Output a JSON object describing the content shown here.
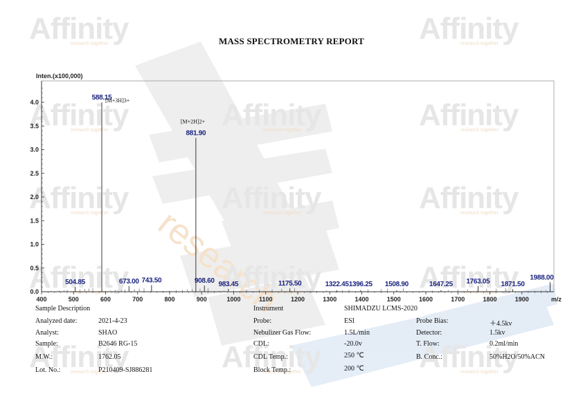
{
  "watermark": {
    "text": "Affinity",
    "subtext": "research together",
    "diagonal": "research"
  },
  "report_title": "MASS SPECTROMETRY REPORT",
  "chart_data": {
    "type": "line",
    "ylabel": "Inten.(x100,000)",
    "xlabel": "m/z",
    "xlim": [
      400,
      2000
    ],
    "ylim": [
      0,
      4.4
    ],
    "xticks": [
      400,
      500,
      600,
      700,
      800,
      900,
      1000,
      1100,
      1200,
      1300,
      1400,
      1500,
      1600,
      1700,
      1800,
      1900
    ],
    "yticks": [
      0.0,
      0.5,
      1.0,
      1.5,
      2.0,
      2.5,
      3.0,
      3.5,
      4.0
    ],
    "peaks": [
      {
        "mz": 588.15,
        "intensity": 4.0,
        "label": "588.15"
      },
      {
        "mz": 881.9,
        "intensity": 3.25,
        "label": "881.90"
      },
      {
        "mz": 504.85,
        "intensity": 0.1,
        "label": "504.85"
      },
      {
        "mz": 673.0,
        "intensity": 0.12,
        "label": "673.00"
      },
      {
        "mz": 743.5,
        "intensity": 0.14,
        "label": "743.50"
      },
      {
        "mz": 908.6,
        "intensity": 0.13,
        "label": "908.60"
      },
      {
        "mz": 983.45,
        "intensity": 0.06,
        "label": "983.45"
      },
      {
        "mz": 1175.5,
        "intensity": 0.07,
        "label": "1175.50"
      },
      {
        "mz": 1322.45,
        "intensity": 0.03,
        "label": "1322.45"
      },
      {
        "mz": 1396.25,
        "intensity": 0.03,
        "label": "1396.25"
      },
      {
        "mz": 1508.9,
        "intensity": 0.03,
        "label": "1508.90"
      },
      {
        "mz": 1647.25,
        "intensity": 0.03,
        "label": "1647.25"
      },
      {
        "mz": 1763.05,
        "intensity": 0.12,
        "label": "1763.05"
      },
      {
        "mz": 1871.5,
        "intensity": 0.05,
        "label": "1871.50"
      },
      {
        "mz": 1988.0,
        "intensity": 0.2,
        "label": "1988.00"
      }
    ],
    "annotations": [
      {
        "text": "[M+3H]3+",
        "mz": 588.15
      },
      {
        "text": "[M+2H]2+",
        "mz": 881.9
      }
    ],
    "grid": false,
    "legend": "none"
  },
  "sample_info": {
    "heading": "Sample Description",
    "rows": [
      {
        "label": "Analyzed date:",
        "value": "2021-4-23"
      },
      {
        "label": "Analyst:",
        "value": "SHAO"
      },
      {
        "label": "Sample:",
        "value": "B2646 RG-15"
      },
      {
        "label": "M.W.:",
        "value": "1762.05"
      },
      {
        "label": "Lot. No.:",
        "value": "P210409-SJ886281"
      }
    ]
  },
  "instrument_info": {
    "heading": "Instrument",
    "instrument_value": "SHIMADZU LCMS-2020",
    "rows": [
      {
        "label": "Probe:",
        "value": "ESI"
      },
      {
        "label": "Nebulizer Gas Flow:",
        "value": "1.5L/min"
      },
      {
        "label": "CDL:",
        "value": "-20.0v"
      },
      {
        "label": "CDL Temp.:",
        "value": "250 ℃"
      },
      {
        "label": "Block Temp.:",
        "value": "200 ℃"
      }
    ]
  },
  "detector_info": {
    "rows": [
      {
        "label": "Probe Bias:",
        "value": "＋4.5kv"
      },
      {
        "label": "Detector:",
        "value": "1.5kv"
      },
      {
        "label": "T. Flow:",
        "value": "0.2ml/min"
      },
      {
        "label": "B. Conc.:",
        "value": "50%H2O/50%ACN"
      }
    ]
  },
  "colors": {
    "peak_label": "#1a237e",
    "axis": "#333333",
    "watermark_gray": "#e6e6e6",
    "watermark_blue": "#d8e3f1"
  }
}
